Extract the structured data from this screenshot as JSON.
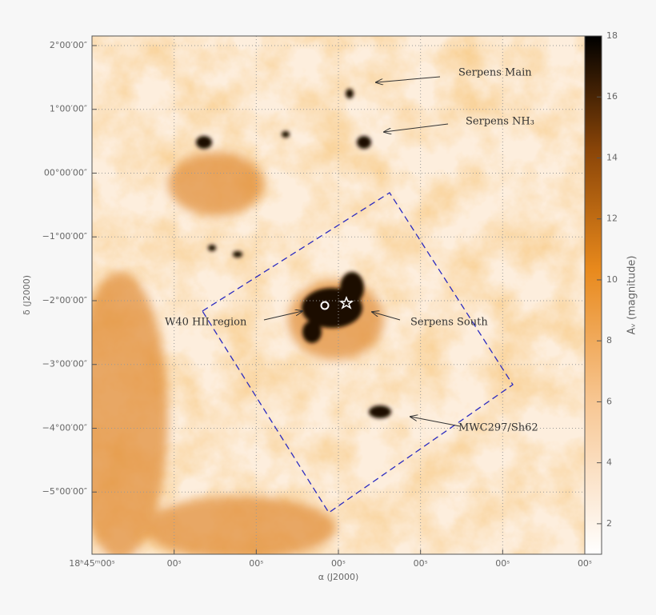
{
  "chart_data": {
    "type": "image",
    "xlabel": "α (J2000)",
    "ylabel": "δ (J2000)",
    "xlim": [
      45,
      15
    ],
    "xticks": [
      {
        "value": 45,
        "label": "18ʰ45ᵐ00ˢ"
      },
      {
        "value": 40,
        "label": "00ˢ"
      },
      {
        "value": 35,
        "label": "00ˢ"
      },
      {
        "value": 30,
        "label": "00ˢ"
      },
      {
        "value": 25,
        "label": "00ˢ"
      },
      {
        "value": 20,
        "label": "00ˢ"
      },
      {
        "value": 15,
        "label": "00ˢ"
      }
    ],
    "ylim": [
      -5.975,
      2.15
    ],
    "yticks": [
      {
        "value": 2,
        "label": "2°00′00″"
      },
      {
        "value": 1,
        "label": "1°00′00″"
      },
      {
        "value": 0,
        "label": "00°00′00″"
      },
      {
        "value": -1,
        "label": "−1°00′00″"
      },
      {
        "value": -2,
        "label": "−2°00′00″"
      },
      {
        "value": -3,
        "label": "−3°00′00″"
      },
      {
        "value": -4,
        "label": "−4°00′00″"
      },
      {
        "value": -5,
        "label": "−5°00′00″"
      }
    ],
    "grid": true,
    "colorbar": {
      "label": "Aᵥ (magnitude)",
      "lim": [
        1,
        18
      ],
      "ticks": [
        2,
        4,
        6,
        8,
        10,
        12,
        14,
        16,
        18
      ]
    },
    "annotations": [
      "Serpens Main",
      "Serpens NH₃",
      "W40 HII region",
      "Serpens South",
      "MWC297/Sh62"
    ]
  }
}
